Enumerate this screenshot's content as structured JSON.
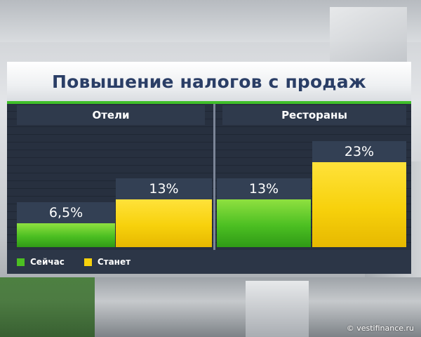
{
  "chart_data": {
    "type": "bar",
    "title": "Повышение налогов с продаж",
    "categories": [
      "Отели",
      "Рестораны"
    ],
    "series": [
      {
        "name": "Сейчас",
        "values": [
          6.5,
          13
        ],
        "labels": [
          "6,5%",
          "13%"
        ],
        "color": "#4cbf22"
      },
      {
        "name": "Станет",
        "values": [
          13,
          23
        ],
        "labels": [
          "13%",
          "23%"
        ],
        "color": "#f7d10c"
      }
    ],
    "ylim": [
      0,
      30
    ],
    "xlabel": "",
    "ylabel": ""
  },
  "legend": {
    "now": "Сейчас",
    "later": "Станет"
  },
  "watermark": "© vestifinance.ru"
}
